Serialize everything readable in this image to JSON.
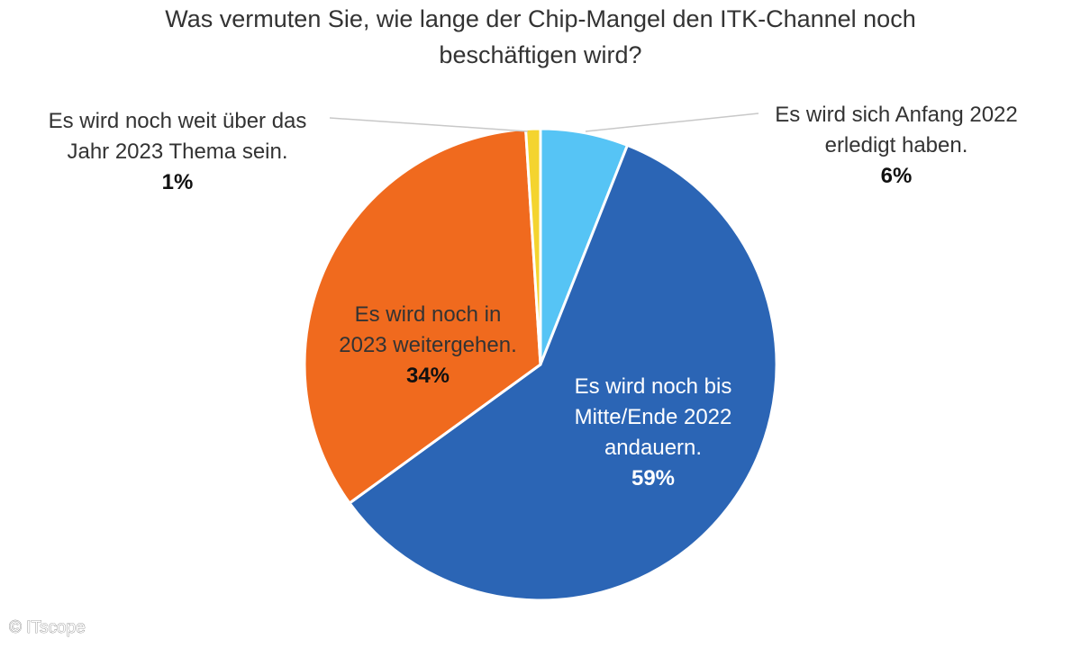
{
  "chart_data": {
    "type": "pie",
    "title": "Was vermuten Sie, wie lange der Chip-Mangel den ITK-Channel noch beschäftigen wird?",
    "title_lines": [
      "Was vermuten Sie, wie lange der Chip-Mangel den ITK-Channel noch",
      "beschäftigen wird?"
    ],
    "slices": [
      {
        "label": "Es wird sich Anfang 2022 erledigt haben.",
        "label_lines": [
          "Es wird sich Anfang 2022",
          "erledigt haben."
        ],
        "value": 6,
        "value_label": "6%",
        "color": "#56c4f5"
      },
      {
        "label": "Es wird noch bis Mitte/Ende 2022 andauern.",
        "label_lines": [
          "Es wird noch bis",
          "Mitte/Ende 2022",
          "andauern."
        ],
        "value": 59,
        "value_label": "59%",
        "color": "#2b65b5"
      },
      {
        "label": "Es wird noch in 2023 weitergehen.",
        "label_lines": [
          "Es wird noch in",
          "2023 weitergehen."
        ],
        "value": 34,
        "value_label": "34%",
        "color": "#f06a1e"
      },
      {
        "label": "Es wird noch weit über das Jahr 2023 Thema sein.",
        "label_lines": [
          "Es wird noch weit über das",
          "Jahr 2023 Thema sein."
        ],
        "value": 1,
        "value_label": "1%",
        "color": "#f4d42f"
      }
    ]
  },
  "credit": "© ITscope"
}
